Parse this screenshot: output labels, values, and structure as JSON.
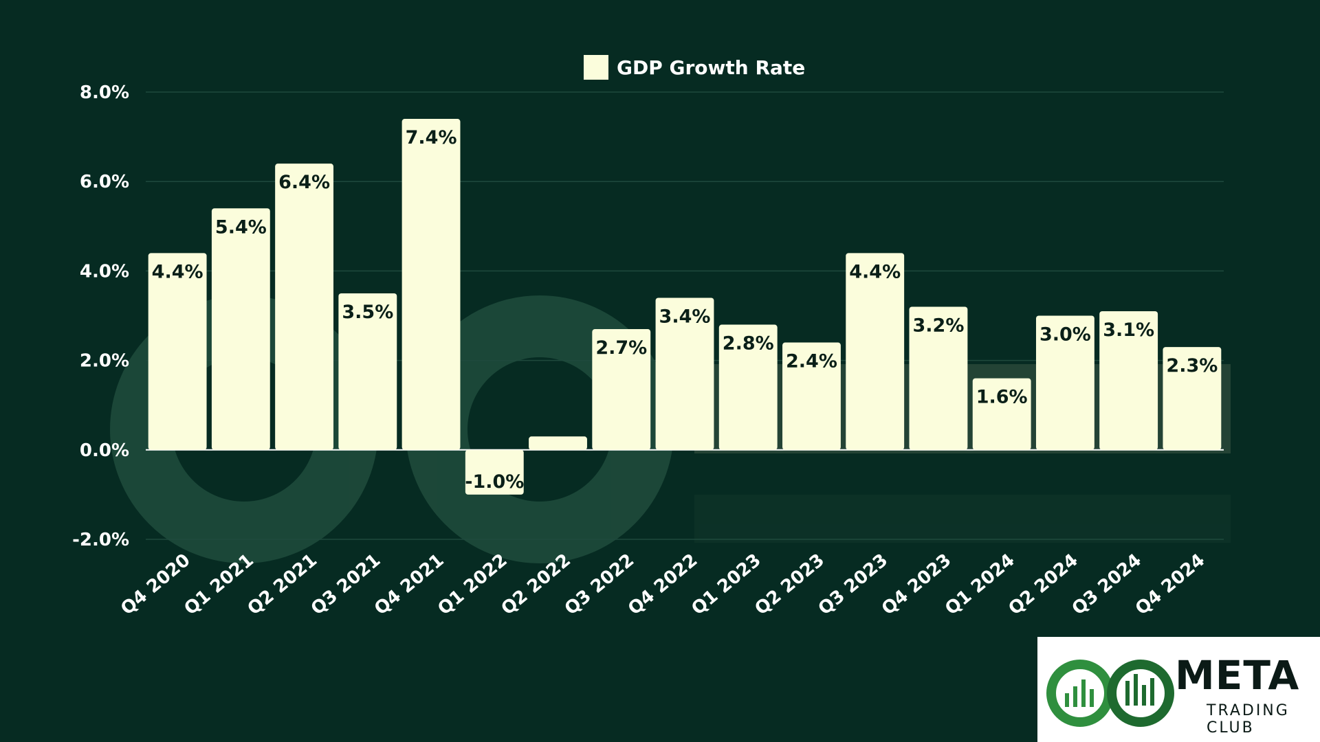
{
  "chart_data": {
    "type": "bar",
    "categories": [
      "Q4 2020",
      "Q1 2021",
      "Q2 2021",
      "Q3 2021",
      "Q4 2021",
      "Q1 2022",
      "Q2 2022",
      "Q3 2022",
      "Q4 2022",
      "Q1 2023",
      "Q2 2023",
      "Q3 2023",
      "Q4 2023",
      "Q1 2024",
      "Q2 2024",
      "Q3 2024",
      "Q4 2024"
    ],
    "series": [
      {
        "name": "GDP Growth Rate",
        "values": [
          4.4,
          5.4,
          6.4,
          3.5,
          7.4,
          -1.0,
          0.3,
          2.7,
          3.4,
          2.8,
          2.4,
          4.4,
          3.2,
          1.6,
          3.0,
          3.1,
          2.3
        ],
        "labels": [
          "4.4%",
          "5.4%",
          "6.4%",
          "3.5%",
          "7.4%",
          "-1.0%",
          "",
          "2.7%",
          "3.4%",
          "2.8%",
          "2.4%",
          "4.4%",
          "3.2%",
          "1.6%",
          "3.0%",
          "3.1%",
          "2.3%"
        ]
      }
    ],
    "ylim": [
      -2,
      8
    ],
    "yticks": [
      -2,
      0,
      2,
      4,
      6,
      8
    ],
    "ytick_labels": [
      "-2.0%",
      "0.0%",
      "2.0%",
      "4.0%",
      "6.0%",
      "8.0%"
    ],
    "legend": "top-center",
    "grid": true,
    "colors": {
      "background": "#062b22",
      "bar": "#fbfddc",
      "grid": "#1f4a3d"
    }
  },
  "brand": {
    "name": "META",
    "tagline": "TRADING CLUB",
    "logo_icon": "infinity-chart-icon"
  }
}
